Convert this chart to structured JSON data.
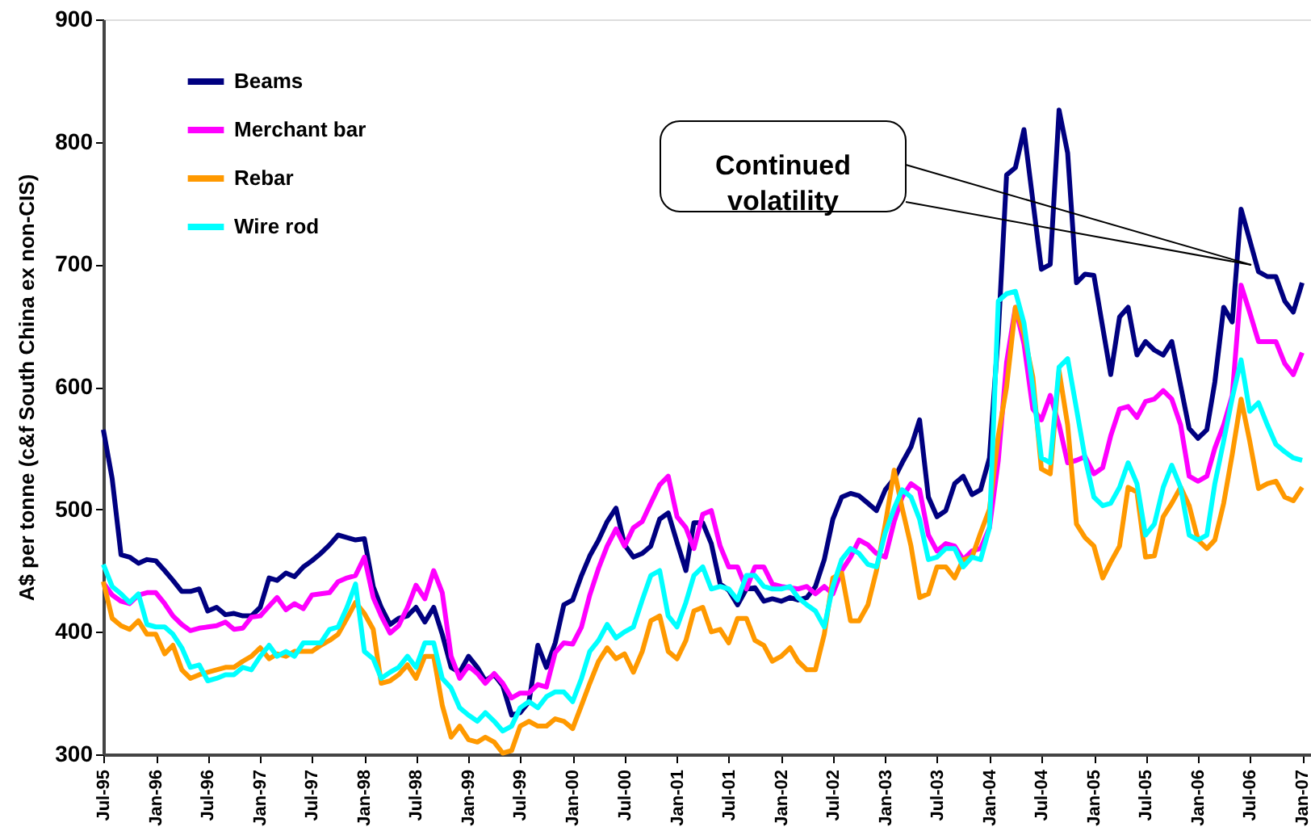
{
  "chart_data": {
    "type": "line",
    "ylabel": "A$ per tonne (c&f South China ex non-CIS)",
    "ylim": [
      300,
      900
    ],
    "yticks": [
      300,
      400,
      500,
      600,
      700,
      800,
      900
    ],
    "xlim": [
      "1995-07",
      "2007-02"
    ],
    "xticks": [
      {
        "value": "1995-07",
        "label": "Jul-95"
      },
      {
        "value": "1996-01",
        "label": "Jan-96"
      },
      {
        "value": "1996-07",
        "label": "Jul-96"
      },
      {
        "value": "1997-01",
        "label": "Jan-97"
      },
      {
        "value": "1997-07",
        "label": "Jul-97"
      },
      {
        "value": "1998-01",
        "label": "Jan-98"
      },
      {
        "value": "1998-07",
        "label": "Jul-98"
      },
      {
        "value": "1999-01",
        "label": "Jan-99"
      },
      {
        "value": "1999-07",
        "label": "Jul-99"
      },
      {
        "value": "2000-01",
        "label": "Jan-00"
      },
      {
        "value": "2000-07",
        "label": "Jul-00"
      },
      {
        "value": "2001-01",
        "label": "Jan-01"
      },
      {
        "value": "2001-07",
        "label": "Jul-01"
      },
      {
        "value": "2002-01",
        "label": "Jan-02"
      },
      {
        "value": "2002-07",
        "label": "Jul-02"
      },
      {
        "value": "2003-01",
        "label": "Jan-03"
      },
      {
        "value": "2003-07",
        "label": "Jul-03"
      },
      {
        "value": "2004-01",
        "label": "Jan-04"
      },
      {
        "value": "2004-07",
        "label": "Jul-04"
      },
      {
        "value": "2005-01",
        "label": "Jan-05"
      },
      {
        "value": "2005-07",
        "label": "Jul-05"
      },
      {
        "value": "2006-01",
        "label": "Jan-06"
      },
      {
        "value": "2006-07",
        "label": "Jul-06"
      },
      {
        "value": "2007-01",
        "label": "Jan-07"
      }
    ],
    "x": [
      "1995-07",
      "1995-08",
      "1995-09",
      "1995-10",
      "1995-11",
      "1995-12",
      "1996-01",
      "1996-02",
      "1996-03",
      "1996-04",
      "1996-05",
      "1996-06",
      "1996-07",
      "1996-08",
      "1996-09",
      "1996-10",
      "1996-11",
      "1996-12",
      "1997-01",
      "1997-02",
      "1997-03",
      "1997-04",
      "1997-05",
      "1997-06",
      "1997-07",
      "1997-08",
      "1997-09",
      "1997-10",
      "1997-11",
      "1997-12",
      "1998-01",
      "1998-02",
      "1998-03",
      "1998-04",
      "1998-05",
      "1998-06",
      "1998-07",
      "1998-08",
      "1998-09",
      "1998-10",
      "1998-11",
      "1998-12",
      "1999-01",
      "1999-02",
      "1999-03",
      "1999-04",
      "1999-05",
      "1999-06",
      "1999-07",
      "1999-08",
      "1999-09",
      "1999-10",
      "1999-11",
      "1999-12",
      "2000-01",
      "2000-02",
      "2000-03",
      "2000-04",
      "2000-05",
      "2000-06",
      "2000-07",
      "2000-08",
      "2000-09",
      "2000-10",
      "2000-11",
      "2000-12",
      "2001-01",
      "2001-02",
      "2001-03",
      "2001-04",
      "2001-05",
      "2001-06",
      "2001-07",
      "2001-08",
      "2001-09",
      "2001-10",
      "2001-11",
      "2001-12",
      "2002-01",
      "2002-02",
      "2002-03",
      "2002-04",
      "2002-05",
      "2002-06",
      "2002-07",
      "2002-08",
      "2002-09",
      "2002-10",
      "2002-11",
      "2002-12",
      "2003-01",
      "2003-02",
      "2003-03",
      "2003-04",
      "2003-05",
      "2003-06",
      "2003-07",
      "2003-08",
      "2003-09",
      "2003-10",
      "2003-11",
      "2003-12",
      "2004-01",
      "2004-02",
      "2004-03",
      "2004-04",
      "2004-05",
      "2004-06",
      "2004-07",
      "2004-08",
      "2004-09",
      "2004-10",
      "2004-11",
      "2004-12",
      "2005-01",
      "2005-02",
      "2005-03",
      "2005-04",
      "2005-05",
      "2005-06",
      "2005-07",
      "2005-08",
      "2005-09",
      "2005-10",
      "2005-11",
      "2005-12",
      "2006-01",
      "2006-02",
      "2006-03",
      "2006-04",
      "2006-05",
      "2006-06",
      "2006-07",
      "2006-08",
      "2006-09",
      "2006-10",
      "2006-11",
      "2006-12",
      "2007-01"
    ],
    "series": [
      {
        "name": "Beams",
        "color": "#000080",
        "x": [
          "1995-07",
          "1995-08",
          "1995-09",
          "1995-10",
          "1995-11",
          "1995-12",
          "1996-01",
          "1996-02",
          "1996-03",
          "1996-04",
          "1996-05",
          "1996-06",
          "1996-07",
          "1996-08",
          "1996-09",
          "1996-10",
          "1996-11",
          "1996-12",
          "1997-01",
          "1997-02",
          "1997-03",
          "1997-04",
          "1997-05",
          "1997-06",
          "1997-07",
          "1997-08",
          "1997-09",
          "1997-10",
          "1997-11",
          "1997-12",
          "1998-01",
          "1998-02",
          "1998-03",
          "1998-04",
          "1998-05",
          "1998-06",
          "1998-07",
          "1998-08",
          "1998-09",
          "1998-10",
          "1998-11",
          "1998-12",
          "1999-01",
          "1999-02",
          "1999-03",
          "1999-04",
          "1999-05",
          "1999-06",
          "1999-07",
          "1999-08",
          "1999-09",
          "1999-10",
          "1999-11",
          "1999-12",
          "2000-01",
          "2000-02",
          "2000-03",
          "2000-04",
          "2000-05",
          "2000-06",
          "2000-07",
          "2000-08",
          "2000-09",
          "2000-10",
          "2000-11",
          "2000-12",
          "2001-01",
          "2001-02",
          "2001-03",
          "2001-04",
          "2001-05",
          "2001-06",
          "2001-07",
          "2001-08",
          "2001-09",
          "2001-10",
          "2001-11",
          "2001-12",
          "2002-01",
          "2002-02",
          "2002-03",
          "2002-04",
          "2002-05",
          "2002-06",
          "2002-07",
          "2002-08",
          "2002-09",
          "2002-10",
          "2002-11",
          "2002-12",
          "2003-01",
          "2003-02",
          "2003-03",
          "2003-04",
          "2003-05",
          "2003-06",
          "2003-07",
          "2003-08",
          "2003-09",
          "2003-10",
          "2003-11",
          "2003-12",
          "2004-01",
          "2004-02",
          "2004-03",
          "2004-04",
          "2004-05",
          "2004-07",
          "2004-08",
          "2004-09",
          "2004-10",
          "2004-11",
          "2004-12",
          "2005-01",
          "2005-03",
          "2005-04",
          "2005-05",
          "2005-06",
          "2005-07",
          "2005-08",
          "2005-09",
          "2005-10",
          "2005-12",
          "2006-01",
          "2006-02",
          "2006-03",
          "2006-04",
          "2006-05",
          "2006-06",
          "2006-07",
          "2006-08",
          "2006-09",
          "2006-10",
          "2006-11",
          "2006-12",
          "2007-01"
        ],
        "values": [
          565,
          525,
          463,
          461,
          456,
          459,
          458,
          450,
          442,
          433,
          433,
          435,
          417,
          420,
          414,
          415,
          413,
          413,
          420,
          444,
          442,
          448,
          445,
          453,
          458,
          464,
          471,
          479,
          477,
          475,
          476,
          437,
          420,
          406,
          411,
          413,
          420,
          408,
          420,
          398,
          371,
          367,
          380,
          371,
          360,
          365,
          356,
          332,
          334,
          343,
          389,
          371,
          391,
          422,
          426,
          446,
          462,
          475,
          490,
          501,
          471,
          461,
          464,
          470,
          492,
          497,
          473,
          450,
          489,
          489,
          472,
          439,
          434,
          422,
          435,
          436,
          425,
          427,
          425,
          428,
          426,
          428,
          437,
          459,
          492,
          510,
          513,
          511,
          505,
          499,
          516,
          525,
          538,
          551,
          573,
          510,
          494,
          499,
          521,
          527,
          512,
          516,
          542,
          644,
          773,
          779,
          810,
          696,
          700,
          826,
          791,
          685,
          692,
          691,
          610,
          657,
          665,
          626,
          637,
          630,
          626,
          637,
          566,
          558,
          565,
          604,
          665,
          653,
          745,
          720,
          694,
          690,
          690,
          670,
          661,
          685
        ]
      },
      {
        "name": "Merchant bar",
        "color": "#ff00ff",
        "values": [
          440,
          430,
          425,
          423,
          430,
          432,
          432,
          423,
          413,
          406,
          401,
          403,
          404,
          405,
          408,
          402,
          403,
          412,
          413,
          421,
          428,
          418,
          423,
          419,
          430,
          431,
          432,
          441,
          444,
          446,
          461,
          428,
          413,
          399,
          405,
          420,
          438,
          427,
          450,
          432,
          380,
          362,
          372,
          366,
          358,
          366,
          358,
          346,
          350,
          350,
          357,
          355,
          383,
          391,
          390,
          404,
          430,
          452,
          470,
          484,
          470,
          485,
          490,
          505,
          520,
          527,
          494,
          485,
          468,
          496,
          499,
          470,
          453,
          453,
          435,
          453,
          453,
          439,
          437,
          436,
          435,
          437,
          431,
          437,
          431,
          450,
          461,
          475,
          471,
          464,
          461,
          490,
          510,
          521,
          516,
          479,
          466,
          472,
          470,
          459,
          466,
          468,
          485,
          540,
          620,
          665,
          635,
          582,
          573,
          593,
          569,
          538,
          540,
          543,
          529,
          534,
          560,
          582,
          584,
          575,
          588,
          590,
          597,
          590,
          569,
          527,
          523,
          527,
          550,
          569,
          593,
          683,
          661,
          637,
          637,
          637,
          619,
          610,
          628
        ]
      },
      {
        "name": "Rebar",
        "color": "#ff9900",
        "values": [
          441,
          411,
          405,
          402,
          409,
          398,
          398,
          382,
          389,
          369,
          362,
          365,
          367,
          369,
          371,
          371,
          376,
          380,
          387,
          378,
          382,
          380,
          384,
          384,
          384,
          389,
          393,
          398,
          411,
          424,
          415,
          402,
          358,
          360,
          365,
          373,
          362,
          380,
          380,
          340,
          314,
          323,
          312,
          310,
          314,
          310,
          301,
          303,
          323,
          327,
          323,
          323,
          329,
          327,
          321,
          340,
          358,
          376,
          387,
          378,
          382,
          367,
          384,
          409,
          413,
          384,
          378,
          393,
          417,
          420,
          400,
          402,
          391,
          411,
          411,
          393,
          389,
          376,
          380,
          387,
          376,
          369,
          369,
          398,
          444,
          448,
          409,
          409,
          422,
          450,
          488,
          532,
          501,
          470,
          428,
          431,
          453,
          453,
          444,
          459,
          461,
          481,
          500,
          560,
          600,
          665,
          643,
          608,
          533,
          529,
          613,
          569,
          488,
          477,
          470,
          444,
          457,
          470,
          518,
          514,
          461,
          462,
          494,
          505,
          518,
          503,
          475,
          468,
          475,
          505,
          545,
          590,
          556,
          517,
          521,
          523,
          510,
          507,
          518
        ]
      },
      {
        "name": "Wire rod",
        "color": "#00ffff",
        "values": [
          455,
          437,
          431,
          424,
          431,
          406,
          404,
          404,
          398,
          387,
          371,
          373,
          360,
          362,
          365,
          365,
          371,
          369,
          380,
          389,
          380,
          384,
          380,
          391,
          391,
          391,
          402,
          404,
          420,
          439,
          384,
          378,
          362,
          367,
          371,
          380,
          371,
          391,
          391,
          362,
          354,
          338,
          332,
          327,
          334,
          327,
          319,
          323,
          338,
          343,
          338,
          347,
          351,
          351,
          343,
          362,
          384,
          393,
          406,
          395,
          400,
          404,
          426,
          446,
          450,
          413,
          404,
          424,
          446,
          453,
          435,
          437,
          435,
          426,
          446,
          446,
          437,
          435,
          435,
          437,
          428,
          422,
          417,
          404,
          437,
          459,
          468,
          464,
          455,
          453,
          481,
          501,
          516,
          510,
          492,
          459,
          461,
          468,
          468,
          453,
          461,
          459,
          485,
          670,
          676,
          678,
          652,
          599,
          542,
          538,
          616,
          623,
          582,
          542,
          510,
          503,
          505,
          518,
          538,
          521,
          479,
          488,
          518,
          536,
          518,
          479,
          475,
          479,
          521,
          556,
          591,
          622,
          580,
          587,
          569,
          553,
          547,
          542,
          540
        ]
      }
    ],
    "annotations": [
      "Continued\nvolatility"
    ],
    "legend": "top left",
    "grid": false,
    "marker": "none",
    "line_style": "solid"
  }
}
